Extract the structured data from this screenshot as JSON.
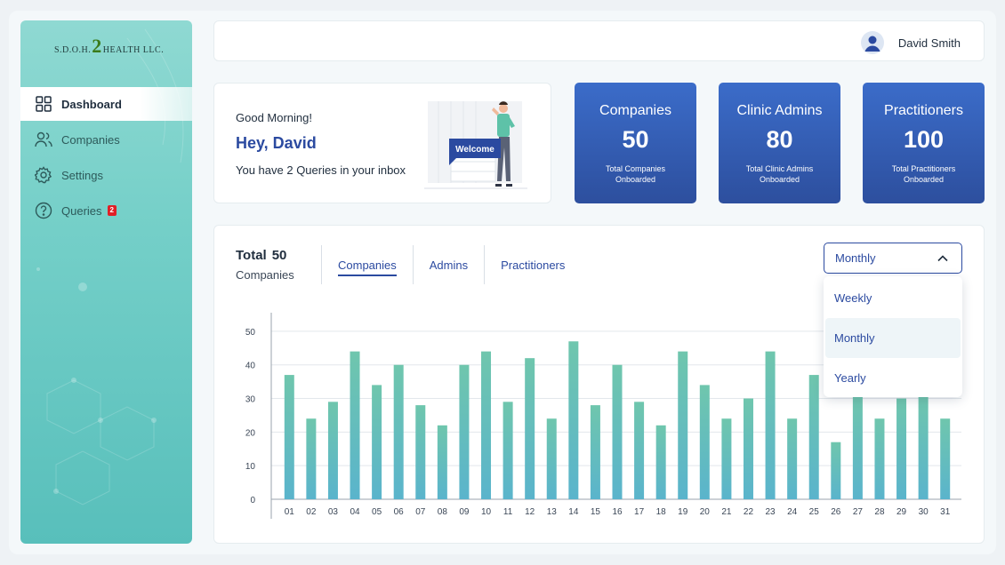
{
  "brand": {
    "logo_left": "S.D.O.H.",
    "logo_mid": "2",
    "logo_right": "HEALTH LLC."
  },
  "sidebar": {
    "items": [
      {
        "label": "Dashboard",
        "icon": "grid-icon"
      },
      {
        "label": "Companies",
        "icon": "users-icon"
      },
      {
        "label": "Settings",
        "icon": "gear-icon"
      },
      {
        "label": "Queries",
        "icon": "help-circle-icon",
        "badge": "2"
      }
    ]
  },
  "header": {
    "user_name": "David Smith"
  },
  "welcome": {
    "greeting": "Good Morning!",
    "title": "Hey, David",
    "message": "You have 2 Queries in your inbox",
    "sign_text": "Welcome"
  },
  "stats": [
    {
      "title": "Companies",
      "value": "50",
      "subtitle": "Total Companies Onboarded"
    },
    {
      "title": "Clinic Admins",
      "value": "80",
      "subtitle": "Total Clinic Admins Onboarded"
    },
    {
      "title": "Practitioners",
      "value": "100",
      "subtitle": "Total Practitioners Onboarded"
    }
  ],
  "panel": {
    "total_label": "Total",
    "total_value": "50",
    "total_sub": "Companies",
    "tabs": [
      "Companies",
      "Admins",
      "Practitioners"
    ],
    "active_tab": "Companies",
    "select_value": "Monthly",
    "options": [
      "Weekly",
      "Monthly",
      "Yearly"
    ]
  },
  "colors": {
    "accent": "#2b4aa0",
    "bar_top": "#6fc6ad",
    "bar_bottom": "#5ab4cc",
    "badge": "#e01f26"
  },
  "chart_data": {
    "type": "bar",
    "categories": [
      "01",
      "02",
      "03",
      "04",
      "05",
      "06",
      "07",
      "08",
      "09",
      "10",
      "11",
      "12",
      "13",
      "14",
      "15",
      "16",
      "17",
      "18",
      "19",
      "20",
      "21",
      "22",
      "23",
      "24",
      "25",
      "26",
      "27",
      "28",
      "29",
      "30",
      "31"
    ],
    "values": [
      37,
      24,
      29,
      44,
      34,
      40,
      28,
      22,
      40,
      44,
      29,
      42,
      24,
      47,
      28,
      40,
      29,
      22,
      44,
      34,
      24,
      30,
      44,
      24,
      37,
      17,
      31,
      24,
      30,
      31,
      24
    ],
    "ylim": [
      0,
      55
    ],
    "yticks": [
      0,
      10,
      20,
      30,
      40,
      50
    ],
    "grid": true,
    "title": "",
    "xlabel": "",
    "ylabel": ""
  }
}
